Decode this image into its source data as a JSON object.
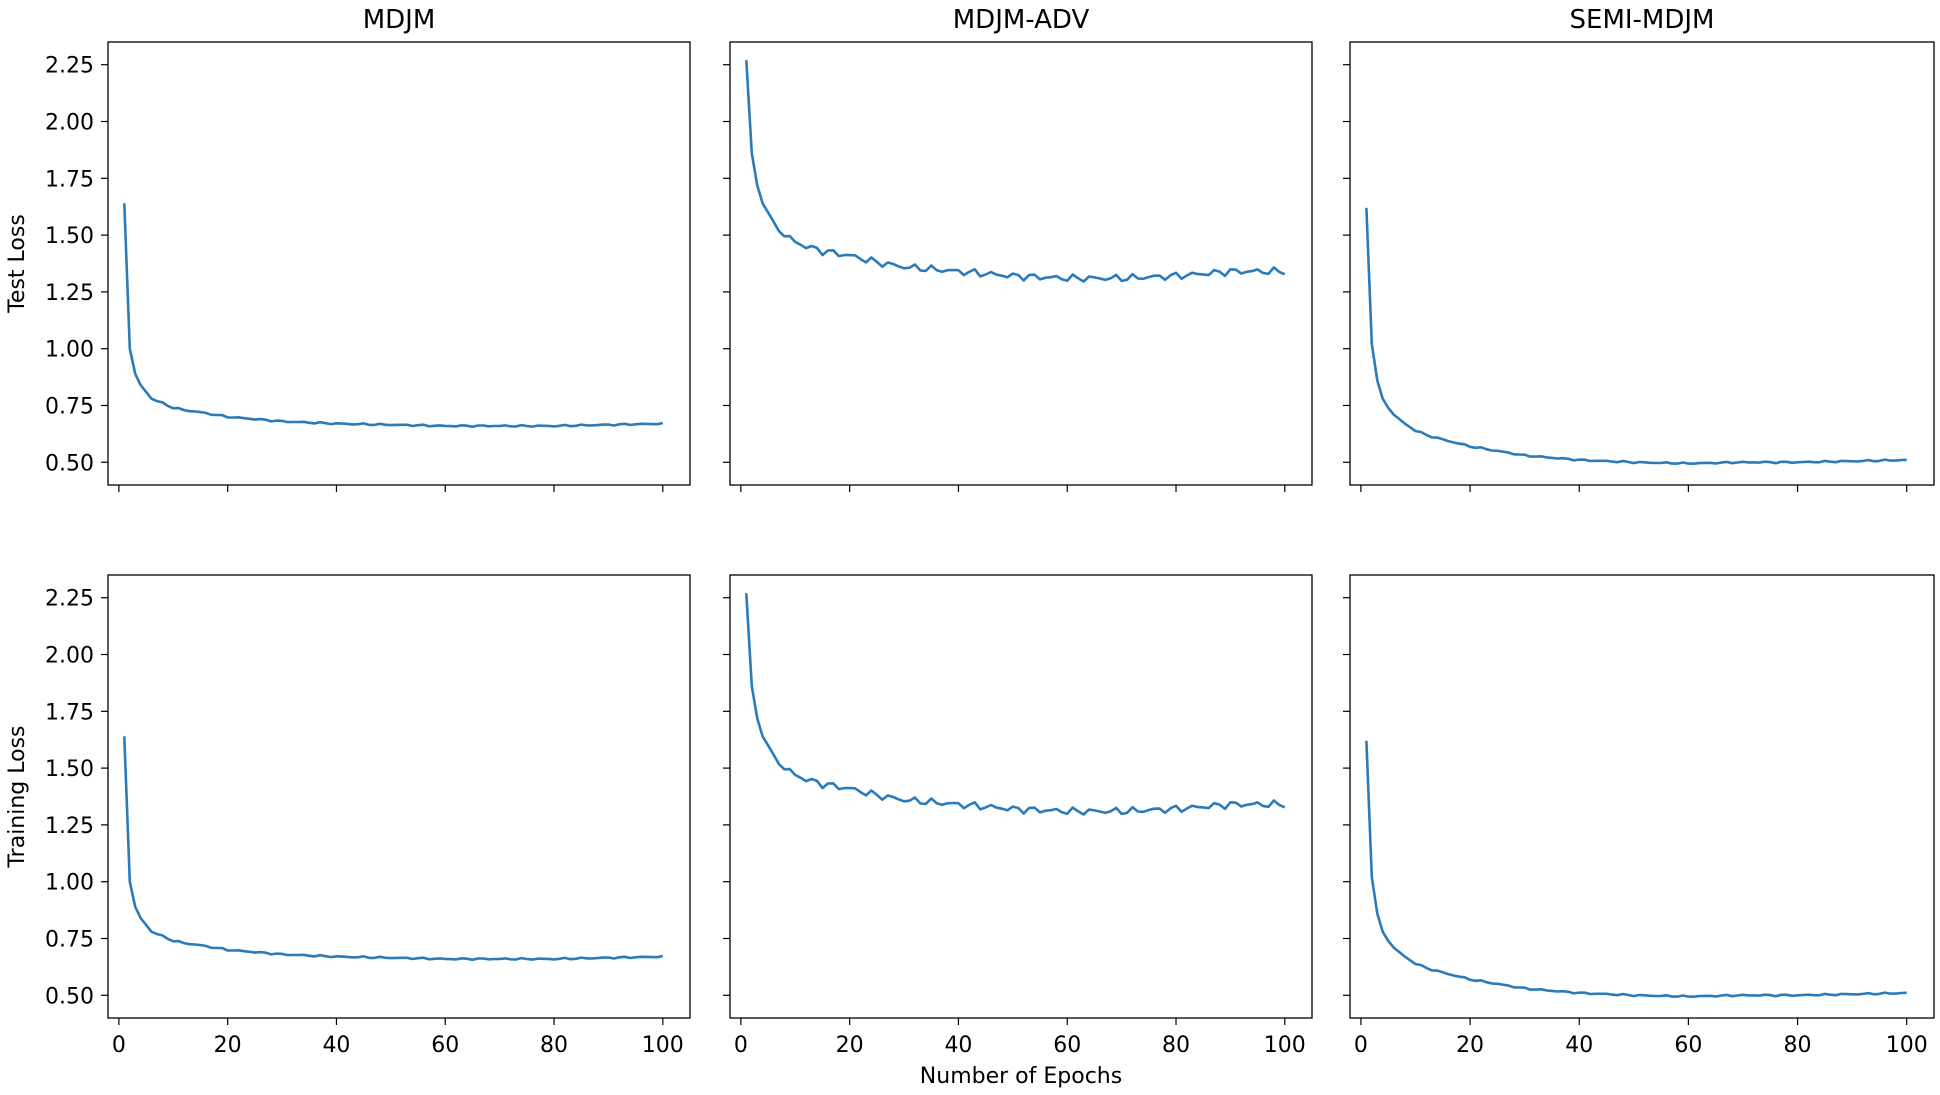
{
  "chart_data": {
    "type": "line",
    "layout": "2x3 grid, shared axes",
    "xlabel": "Number of Epochs",
    "xlim": [
      -2,
      105
    ],
    "ylim": [
      0.4,
      2.35
    ],
    "x_ticks": [
      0,
      20,
      40,
      60,
      80,
      100
    ],
    "y_ticks": [
      0.5,
      0.75,
      1.0,
      1.25,
      1.5,
      1.75,
      2.0,
      2.25
    ],
    "x_tick_labels": [
      "0",
      "20",
      "40",
      "60",
      "80",
      "100"
    ],
    "y_tick_labels": [
      "0.50",
      "0.75",
      "1.00",
      "1.25",
      "1.50",
      "1.75",
      "2.00",
      "2.25"
    ],
    "grid": false,
    "line_color": "#2b7bba",
    "columns": [
      "MDJM",
      "MDJM-ADV",
      "SEMI-MDJM"
    ],
    "rows": [
      "Test Loss",
      "Training Loss"
    ],
    "series": [
      {
        "x": [
          1,
          2,
          3,
          4,
          5,
          6,
          8,
          10,
          12,
          15,
          20,
          25,
          30,
          40,
          50,
          60,
          70,
          80,
          90,
          100
        ],
        "values": [
          1.64,
          1.0,
          0.89,
          0.84,
          0.81,
          0.78,
          0.76,
          0.74,
          0.73,
          0.72,
          0.7,
          0.69,
          0.68,
          0.67,
          0.665,
          0.66,
          0.66,
          0.66,
          0.665,
          0.67
        ]
      },
      {
        "x": [
          1,
          2,
          3,
          4,
          5,
          6,
          8,
          10,
          12,
          15,
          20,
          25,
          30,
          40,
          50,
          60,
          70,
          80,
          90,
          100
        ],
        "values": [
          2.27,
          1.86,
          1.72,
          1.64,
          1.6,
          1.56,
          1.5,
          1.47,
          1.45,
          1.43,
          1.41,
          1.38,
          1.36,
          1.34,
          1.32,
          1.31,
          1.31,
          1.32,
          1.34,
          1.34
        ]
      },
      {
        "x": [
          1,
          2,
          3,
          4,
          5,
          6,
          8,
          10,
          12,
          15,
          20,
          25,
          30,
          40,
          50,
          60,
          70,
          80,
          90,
          100
        ],
        "values": [
          1.62,
          1.02,
          0.86,
          0.78,
          0.74,
          0.71,
          0.67,
          0.64,
          0.62,
          0.6,
          0.57,
          0.55,
          0.53,
          0.51,
          0.5,
          0.495,
          0.5,
          0.5,
          0.505,
          0.51
        ]
      }
    ]
  }
}
